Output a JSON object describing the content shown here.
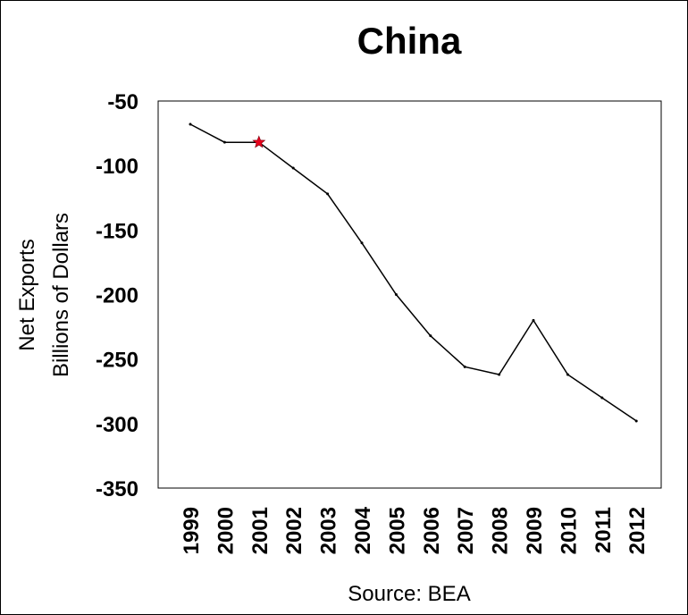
{
  "chart_data": {
    "type": "line",
    "title": "China",
    "ylabel_lines": [
      "Net Exports",
      "Billions of Dollars"
    ],
    "source": "Source: BEA",
    "x": [
      "1999",
      "2000",
      "2001",
      "2002",
      "2003",
      "2004",
      "2005",
      "2006",
      "2007",
      "2008",
      "2009",
      "2010",
      "2011",
      "2012"
    ],
    "series": [
      {
        "values": [
          -68,
          -82,
          -82,
          -102,
          -122,
          -160,
          -200,
          -232,
          -256,
          -262,
          -220,
          -262,
          -280,
          -298
        ]
      }
    ],
    "ylim": [
      -350,
      -50
    ],
    "yticks": [
      "-50",
      "-100",
      "-150",
      "-200",
      "-250",
      "-300",
      "-350"
    ],
    "highlight": {
      "x": "2001",
      "value": -82,
      "marker": "star",
      "color": "#e8001c"
    },
    "line_color": "#000000",
    "grid": false,
    "legend": "none"
  }
}
